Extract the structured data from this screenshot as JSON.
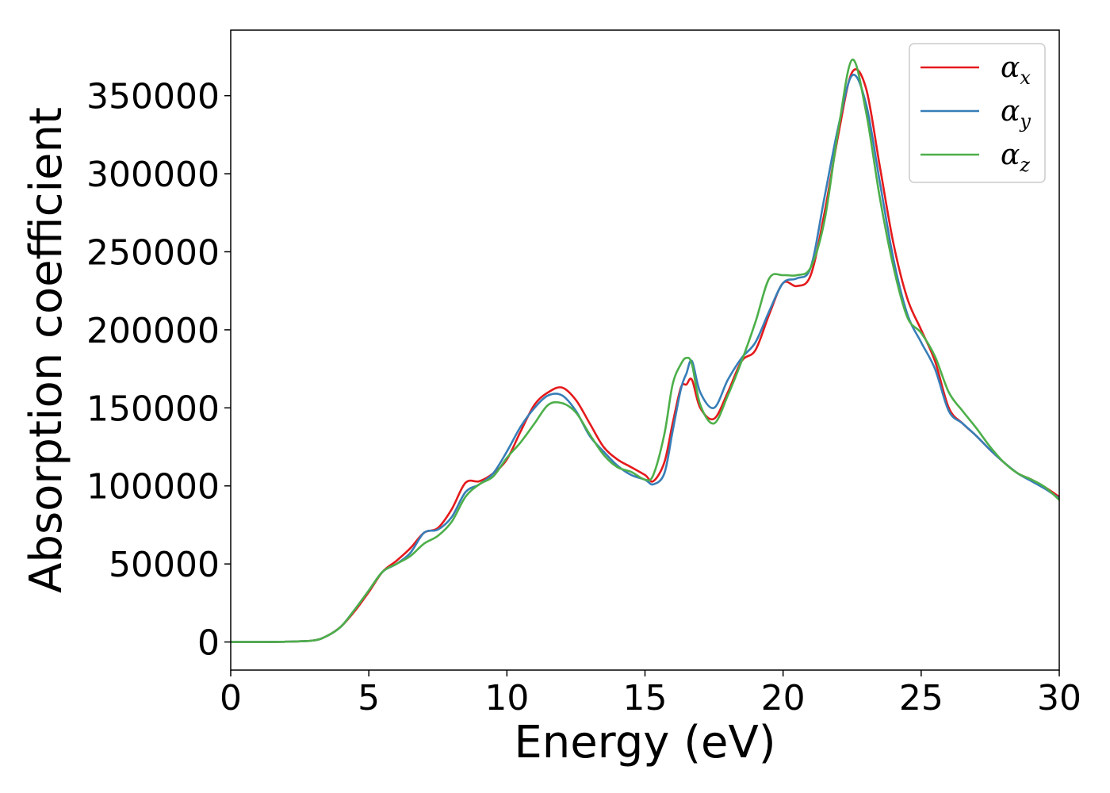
{
  "chart_data": {
    "type": "line",
    "xlabel": "Energy (eV)",
    "ylabel": "Absorption coefficient",
    "xlim": [
      0,
      30
    ],
    "ylim": [
      -18000,
      392000
    ],
    "xticks": [
      0,
      5,
      10,
      15,
      20,
      25,
      30
    ],
    "yticks": [
      0,
      50000,
      100000,
      150000,
      200000,
      250000,
      300000,
      350000
    ],
    "grid": false,
    "legend_position": "top-right",
    "series": [
      {
        "name": "α",
        "subscript": "x",
        "color": "#e41a1c",
        "x": [
          0,
          1,
          2,
          3,
          3.5,
          4,
          4.5,
          5,
          5.5,
          6,
          6.5,
          7,
          7.5,
          8,
          8.5,
          9,
          9.5,
          10,
          10.5,
          11,
          11.5,
          12,
          12.5,
          13,
          13.5,
          14,
          14.5,
          15,
          15.3,
          15.7,
          16,
          16.3,
          16.5,
          16.7,
          17,
          17.5,
          18,
          18.5,
          19,
          19.5,
          20,
          20.5,
          21,
          21.5,
          22,
          22.5,
          23,
          23.5,
          24,
          24.5,
          25,
          25.5,
          26,
          26.5,
          27,
          27.5,
          28,
          28.5,
          29,
          29.5,
          30
        ],
        "y": [
          0,
          0,
          200,
          1000,
          4000,
          10000,
          20000,
          32000,
          45000,
          52000,
          60000,
          70000,
          73000,
          85000,
          102000,
          103000,
          108000,
          117000,
          135000,
          152000,
          160000,
          163000,
          155000,
          140000,
          125000,
          117000,
          112000,
          107000,
          103000,
          115000,
          140000,
          163000,
          165000,
          168000,
          150000,
          143000,
          160000,
          180000,
          187000,
          210000,
          230000,
          228000,
          235000,
          275000,
          325000,
          365000,
          355000,
          305000,
          255000,
          220000,
          200000,
          180000,
          150000,
          140000,
          132000,
          123000,
          115000,
          108000,
          104000,
          99000,
          93000
        ]
      },
      {
        "name": "α",
        "subscript": "y",
        "color": "#377eb8",
        "x": [
          0,
          1,
          2,
          3,
          3.5,
          4,
          4.5,
          5,
          5.5,
          6,
          6.5,
          7,
          7.5,
          8,
          8.5,
          9,
          9.5,
          10,
          10.5,
          11,
          11.5,
          12,
          12.5,
          13,
          13.5,
          14,
          14.5,
          15,
          15.3,
          15.7,
          16,
          16.3,
          16.5,
          16.7,
          17,
          17.5,
          18,
          18.5,
          19,
          19.5,
          20,
          20.5,
          21,
          21.5,
          22,
          22.5,
          23,
          23.5,
          24,
          24.5,
          25,
          25.5,
          26,
          26.5,
          27,
          27.5,
          28,
          28.5,
          29,
          29.5,
          30
        ],
        "y": [
          0,
          0,
          200,
          1000,
          4000,
          10000,
          21000,
          33000,
          45000,
          50000,
          57000,
          70000,
          72000,
          80000,
          96000,
          101000,
          108000,
          122000,
          138000,
          150000,
          158000,
          158000,
          148000,
          132000,
          122000,
          113000,
          107000,
          104000,
          101000,
          108000,
          135000,
          162000,
          172000,
          180000,
          160000,
          150000,
          168000,
          182000,
          192000,
          212000,
          230000,
          233000,
          240000,
          285000,
          330000,
          363000,
          345000,
          295000,
          245000,
          210000,
          192000,
          175000,
          148000,
          140000,
          132000,
          123000,
          115000,
          108000,
          103000,
          98000,
          92000
        ]
      },
      {
        "name": "α",
        "subscript": "z",
        "color": "#4daf4a",
        "x": [
          0,
          1,
          2,
          3,
          3.5,
          4,
          4.5,
          5,
          5.5,
          6,
          6.5,
          7,
          7.5,
          8,
          8.5,
          9,
          9.5,
          10,
          10.5,
          11,
          11.5,
          12,
          12.5,
          13,
          13.5,
          14,
          14.5,
          15,
          15.3,
          15.7,
          16,
          16.3,
          16.5,
          16.7,
          17,
          17.5,
          18,
          18.5,
          19,
          19.5,
          20,
          20.5,
          21,
          21.5,
          22,
          22.5,
          23,
          23.5,
          24,
          24.5,
          25,
          25.5,
          26,
          26.5,
          27,
          27.5,
          28,
          28.5,
          29,
          29.5,
          30
        ],
        "y": [
          0,
          0,
          200,
          1000,
          4000,
          10000,
          21000,
          33000,
          45000,
          50000,
          55000,
          63000,
          68000,
          77000,
          93000,
          101000,
          106000,
          118000,
          128000,
          140000,
          152000,
          153000,
          147000,
          133000,
          120000,
          112000,
          109000,
          104000,
          107000,
          133000,
          165000,
          178000,
          182000,
          178000,
          152000,
          140000,
          158000,
          180000,
          205000,
          233000,
          235000,
          235000,
          240000,
          270000,
          328000,
          373000,
          340000,
          285000,
          240000,
          208000,
          198000,
          183000,
          160000,
          148000,
          137000,
          125000,
          115000,
          108000,
          104000,
          99000,
          91000
        ]
      }
    ]
  }
}
